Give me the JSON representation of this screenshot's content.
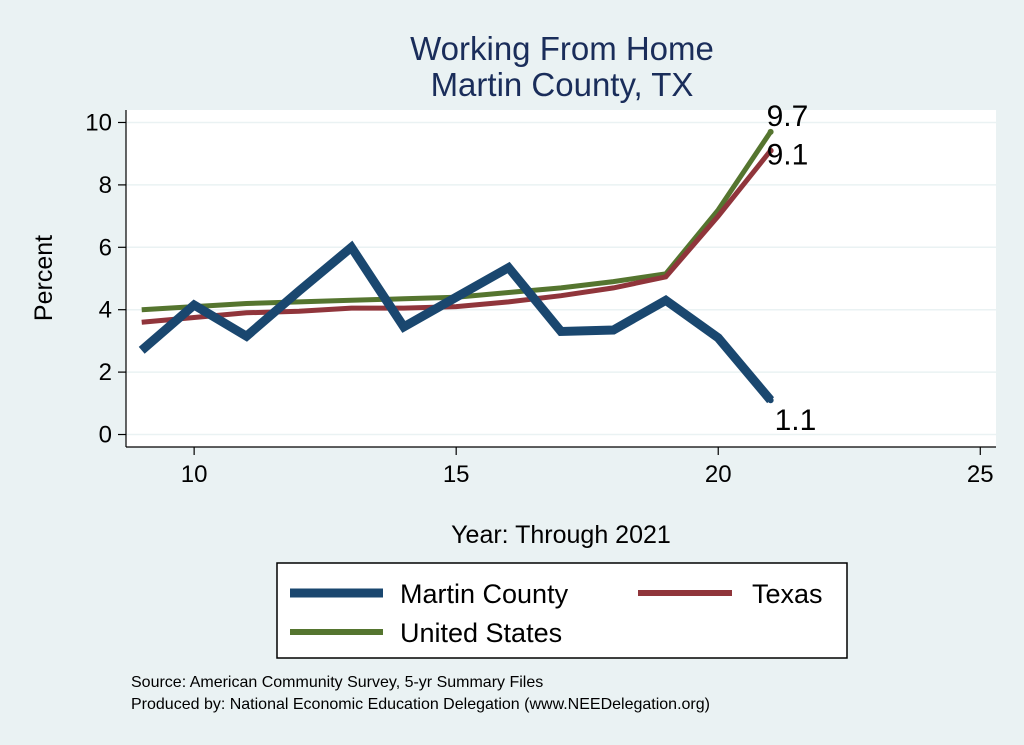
{
  "chart_data": {
    "type": "line",
    "title": [
      "Working From Home",
      "Martin County, TX"
    ],
    "xlabel": "Year: Through 2021",
    "ylabel": "Percent",
    "xlim": [
      8.7,
      25.3
    ],
    "ylim": [
      -0.4,
      10.4
    ],
    "xticks": [
      10,
      15,
      20,
      25
    ],
    "yticks": [
      0,
      2,
      4,
      6,
      8,
      10
    ],
    "grid": true,
    "legend_position": "bottom",
    "series": [
      {
        "name": "Martin County",
        "color": "#1a476f",
        "x": [
          9,
          10,
          11,
          12,
          13,
          14,
          15,
          16,
          17,
          18,
          19,
          20,
          21
        ],
        "y": [
          2.7,
          4.15,
          3.15,
          4.6,
          6.0,
          3.45,
          4.4,
          5.35,
          3.3,
          3.35,
          4.3,
          3.1,
          1.1
        ],
        "end_label": "1.1"
      },
      {
        "name": "Texas",
        "color": "#90353b",
        "x": [
          9,
          10,
          11,
          12,
          13,
          14,
          15,
          16,
          17,
          18,
          19,
          20,
          21
        ],
        "y": [
          3.6,
          3.75,
          3.9,
          3.95,
          4.05,
          4.05,
          4.1,
          4.25,
          4.45,
          4.7,
          5.05,
          7.0,
          9.1
        ],
        "end_label": "9.1"
      },
      {
        "name": "United States",
        "color": "#55752f",
        "x": [
          9,
          10,
          11,
          12,
          13,
          14,
          15,
          16,
          17,
          18,
          19,
          20,
          21
        ],
        "y": [
          4.0,
          4.1,
          4.2,
          4.25,
          4.3,
          4.35,
          4.4,
          4.55,
          4.7,
          4.9,
          5.15,
          7.2,
          9.7
        ],
        "end_label": "9.7"
      }
    ],
    "notes": [
      "Source: American Community Survey, 5-yr Summary Files",
      "Produced by: National Economic Education Delegation (www.NEEDelegation.org)"
    ]
  }
}
